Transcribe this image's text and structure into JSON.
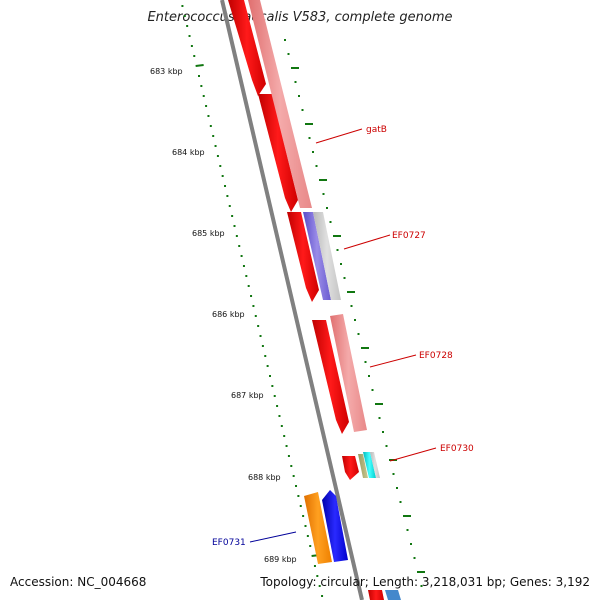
{
  "title": "Enterococcus faecalis V583, complete genome",
  "footer": {
    "accession": "Accession: NC_004668",
    "summary": "Topology: circular; Length: 3,218,031 bp; Genes: 3,192"
  },
  "ticks": [
    {
      "label": "683 kbp"
    },
    {
      "label": "684 kbp"
    },
    {
      "label": "685 kbp"
    },
    {
      "label": "686 kbp"
    },
    {
      "label": "687 kbp"
    },
    {
      "label": "688 kbp"
    },
    {
      "label": "689 kbp"
    }
  ],
  "gene_labels": [
    {
      "name": "gatB",
      "color": "#cc0000"
    },
    {
      "name": "EF0727",
      "color": "#cc0000"
    },
    {
      "name": "EF0728",
      "color": "#cc0000"
    },
    {
      "name": "EF0730",
      "color": "#cc0000"
    },
    {
      "name": "EF0731",
      "color": "#000099"
    }
  ],
  "colors": {
    "backbone": "#808080",
    "tick": "#117711",
    "feature_red": "#ff0000",
    "feature_pink": "#ee8888",
    "feature_blue": "#0000ee",
    "feature_orange": "#ff8800",
    "feature_cyan": "#00dddd"
  }
}
